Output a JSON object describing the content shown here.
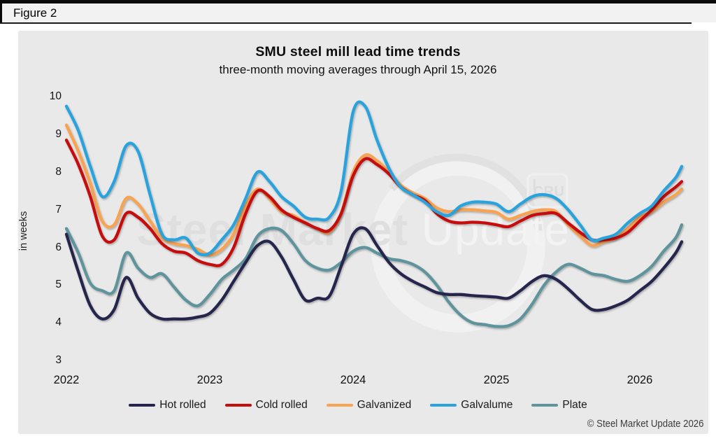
{
  "figure_label": "Figure 2",
  "watermark": {
    "text_primary": "Steel Market",
    "text_secondary": " Update",
    "logo_text": "CRU"
  },
  "footer": {
    "copyright": "© Steel Market Update 2026"
  },
  "colors": {
    "hot_rolled": "#26254e",
    "cold_rolled": "#c50d0e",
    "galvanized": "#f7a351",
    "galvalume": "#2aa2dc",
    "plate": "#5f949c",
    "card_background": "#e9e9e9",
    "top_bar": "#0a0a0a"
  },
  "chart_data": {
    "type": "line",
    "title": "SMU steel mill lead time trends",
    "subtitle": "three-month moving averages through April 15, 2026",
    "ylabel": "in weeks",
    "ylim": [
      3,
      10
    ],
    "y_ticks": [
      10,
      9,
      8,
      7,
      6,
      5,
      4,
      3
    ],
    "x_year_ticks": [
      "2022",
      "2023",
      "2024",
      "2025",
      "2026"
    ],
    "x_start": "2022-01",
    "x_end": "2026-04-15",
    "points_per_year": 12,
    "grid": false,
    "legend_position": "bottom",
    "units": "weeks",
    "series": [
      {
        "name": "Hot rolled",
        "color": "#26254e",
        "values": [
          6.35,
          5.35,
          4.45,
          4.1,
          4.35,
          5.2,
          4.65,
          4.25,
          4.1,
          4.1,
          4.1,
          4.15,
          4.25,
          4.6,
          5.1,
          5.6,
          6.05,
          6.15,
          5.75,
          5.15,
          4.6,
          4.65,
          4.7,
          5.5,
          6.35,
          6.5,
          6.05,
          5.6,
          5.3,
          5.1,
          4.95,
          4.8,
          4.75,
          4.75,
          4.72,
          4.7,
          4.68,
          4.65,
          4.85,
          5.1,
          5.25,
          5.15,
          4.9,
          4.6,
          4.35,
          4.35,
          4.45,
          4.6,
          4.85,
          5.1,
          5.45,
          5.85,
          6.15
        ]
      },
      {
        "name": "Cold rolled",
        "color": "#c50d0e",
        "values": [
          8.85,
          8.2,
          7.35,
          6.3,
          6.2,
          6.9,
          6.8,
          6.5,
          6.1,
          5.9,
          5.85,
          5.65,
          5.55,
          5.55,
          6.0,
          6.9,
          7.5,
          7.35,
          7.0,
          6.8,
          6.65,
          6.5,
          6.45,
          6.9,
          7.9,
          8.35,
          8.2,
          7.95,
          7.6,
          7.4,
          7.25,
          6.9,
          6.7,
          6.65,
          6.67,
          6.65,
          6.6,
          6.55,
          6.7,
          6.85,
          6.9,
          6.9,
          6.65,
          6.4,
          6.2,
          6.2,
          6.25,
          6.4,
          6.7,
          7.0,
          7.35,
          7.6,
          7.75
        ]
      },
      {
        "name": "Galvanized",
        "color": "#f7a351",
        "values": [
          9.25,
          8.55,
          7.7,
          6.7,
          6.6,
          7.3,
          7.15,
          6.7,
          6.25,
          6.1,
          6.05,
          5.95,
          5.8,
          5.95,
          6.35,
          7.1,
          7.55,
          7.3,
          6.95,
          6.85,
          6.65,
          6.5,
          6.4,
          6.9,
          8.0,
          8.45,
          8.3,
          8.0,
          7.65,
          7.45,
          7.3,
          7.05,
          6.95,
          7.0,
          7.0,
          6.97,
          6.93,
          6.75,
          6.85,
          6.95,
          7.0,
          6.95,
          6.6,
          6.3,
          6.05,
          6.15,
          6.25,
          6.5,
          6.8,
          6.95,
          7.2,
          7.4,
          7.55
        ]
      },
      {
        "name": "Galvalume",
        "color": "#2aa2dc",
        "values": [
          9.75,
          9.1,
          8.15,
          7.35,
          7.75,
          8.7,
          8.55,
          7.4,
          6.35,
          6.2,
          6.25,
          5.85,
          5.85,
          6.2,
          6.6,
          7.3,
          8.0,
          7.75,
          7.35,
          7.1,
          6.8,
          6.75,
          6.8,
          7.5,
          9.6,
          9.75,
          8.85,
          8.1,
          7.6,
          7.4,
          7.2,
          6.95,
          6.85,
          7.1,
          7.2,
          7.2,
          7.15,
          6.95,
          7.15,
          7.35,
          7.4,
          7.3,
          7.0,
          6.6,
          6.2,
          6.25,
          6.35,
          6.65,
          6.9,
          7.1,
          7.5,
          7.85,
          8.15
        ]
      },
      {
        "name": "Plate",
        "color": "#5f949c",
        "values": [
          6.5,
          5.85,
          5.05,
          4.85,
          4.85,
          5.85,
          5.45,
          5.2,
          5.3,
          4.95,
          4.6,
          4.45,
          4.75,
          5.15,
          5.4,
          5.7,
          6.3,
          6.5,
          6.45,
          6.1,
          5.65,
          5.45,
          5.4,
          5.6,
          5.9,
          6.0,
          5.85,
          5.7,
          5.65,
          5.55,
          5.35,
          5.0,
          4.55,
          4.2,
          4.0,
          3.95,
          3.9,
          3.92,
          4.1,
          4.5,
          5.0,
          5.35,
          5.55,
          5.45,
          5.3,
          5.25,
          5.15,
          5.1,
          5.25,
          5.5,
          5.9,
          6.25,
          6.6
        ]
      }
    ]
  }
}
